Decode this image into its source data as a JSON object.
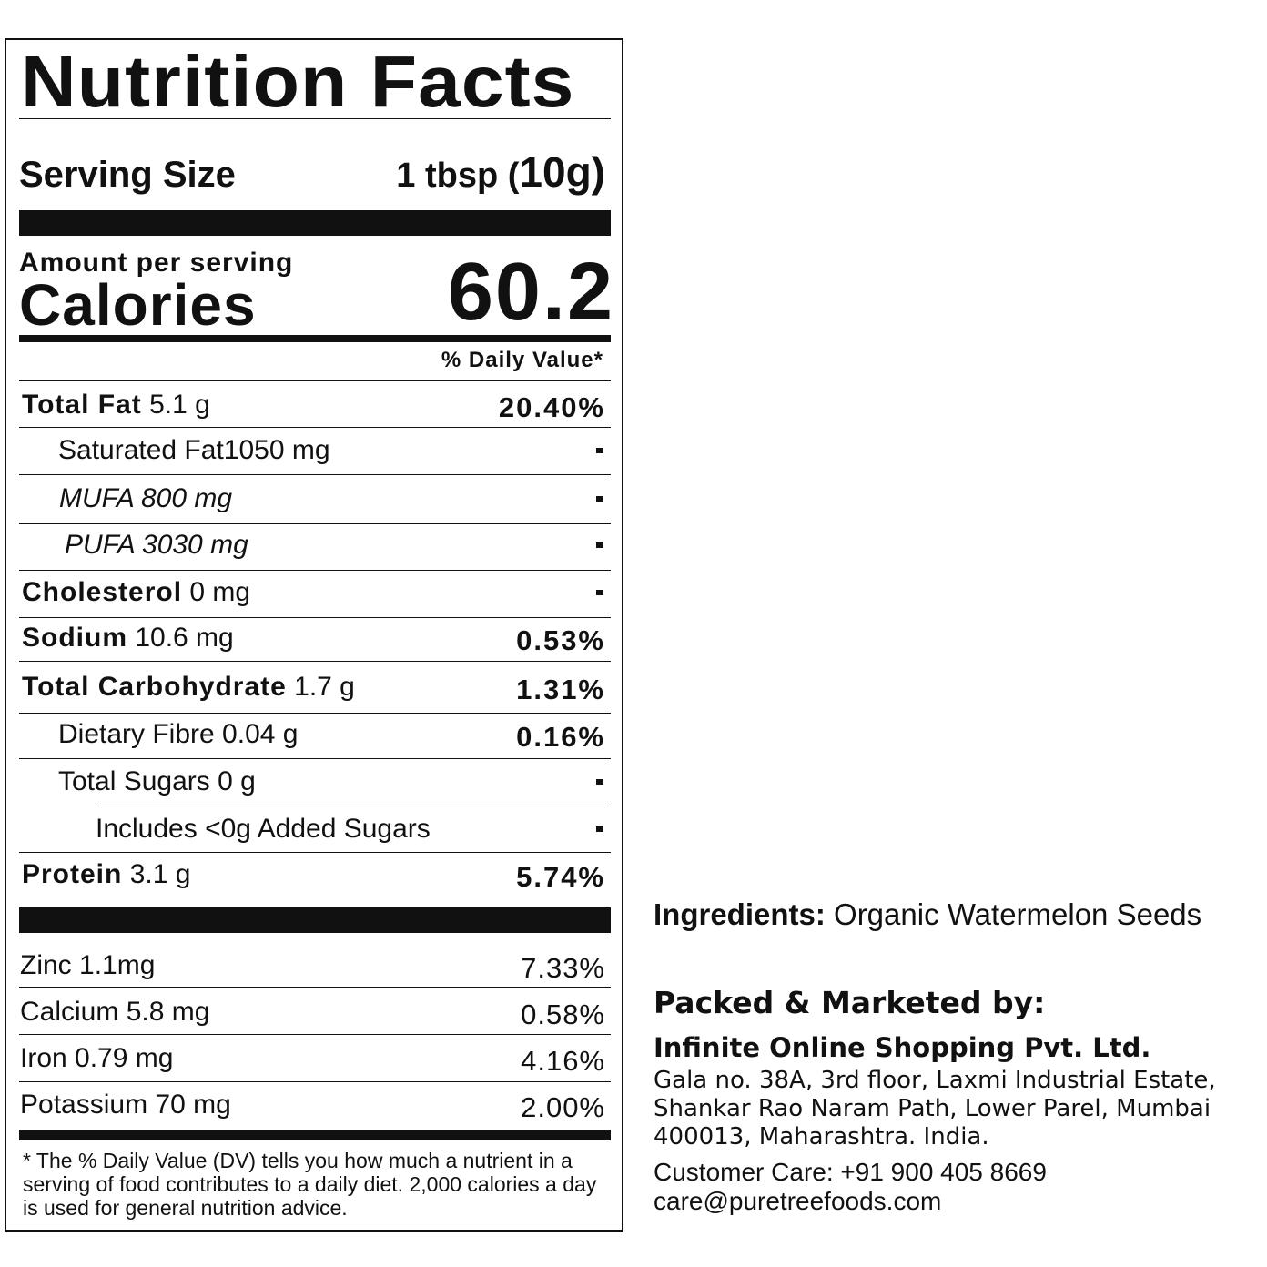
{
  "panel": {
    "title": "Nutrition Facts",
    "serving_label": "Serving Size",
    "serving_amount": "1 tbsp (",
    "serving_grams": "10g",
    "serving_close": ")",
    "amount_per_serving": "Amount per serving",
    "calories_label": "Calories",
    "calories_value": "60.2",
    "dv_header": "% Daily Value*",
    "rows": [
      {
        "bold": "Total Fat",
        "rest": " 5.1 g",
        "dv": "20.40%"
      },
      {
        "bold": "",
        "rest": "Saturated Fat1050 mg",
        "dv": "-"
      },
      {
        "bold": "",
        "rest": "MUFA 800 mg",
        "dv": "-"
      },
      {
        "bold": "",
        "rest": "PUFA  3030 mg",
        "dv": "-"
      },
      {
        "bold": "Cholesterol",
        "rest": " 0 mg",
        "dv": "-"
      },
      {
        "bold": "Sodium",
        "rest": " 10.6 mg",
        "dv": "0.53%"
      },
      {
        "bold": "Total Carbohydrate",
        "rest": " 1.7 g",
        "dv": "1.31%"
      },
      {
        "bold": "",
        "rest": "Dietary Fibre 0.04 g",
        "dv": "0.16%"
      },
      {
        "bold": "",
        "rest": "Total Sugars 0 g",
        "dv": "-"
      },
      {
        "bold": "",
        "rest": "Includes <0g Added Sugars",
        "dv": "-"
      },
      {
        "bold": "Protein",
        "rest": " 3.1 g",
        "dv": "5.74%"
      }
    ],
    "minerals": [
      {
        "name": "Zinc 1.1mg",
        "dv": "7.33%"
      },
      {
        "name": "Calcium 5.8 mg",
        "dv": "0.58%"
      },
      {
        "name": "Iron 0.79 mg",
        "dv": "4.16%"
      },
      {
        "name": "Potassium 70 mg",
        "dv": "2.00%"
      }
    ],
    "footnote": "* The % Daily Value (DV) tells you how much a nutrient in a serving of food contributes to a daily diet. 2,000 calories a day is used for general nutrition advice."
  },
  "info": {
    "ingredients_label": "Ingredients:",
    "ingredients": " Organic Watermelon Seeds",
    "packed_label": "Packed & Marketed by:",
    "company": "Infinite Online Shopping Pvt. Ltd.",
    "address_line1": "Gala no. 38A, 3rd floor, Laxmi Industrial Estate,",
    "address_line2": "Shankar Rao Naram Path, Lower Parel, Mumbai",
    "address_line3": "400013, Maharashtra. India.",
    "customer_care": "Customer Care: +91 900 405 8669",
    "email": "care@puretreefoods.com"
  }
}
